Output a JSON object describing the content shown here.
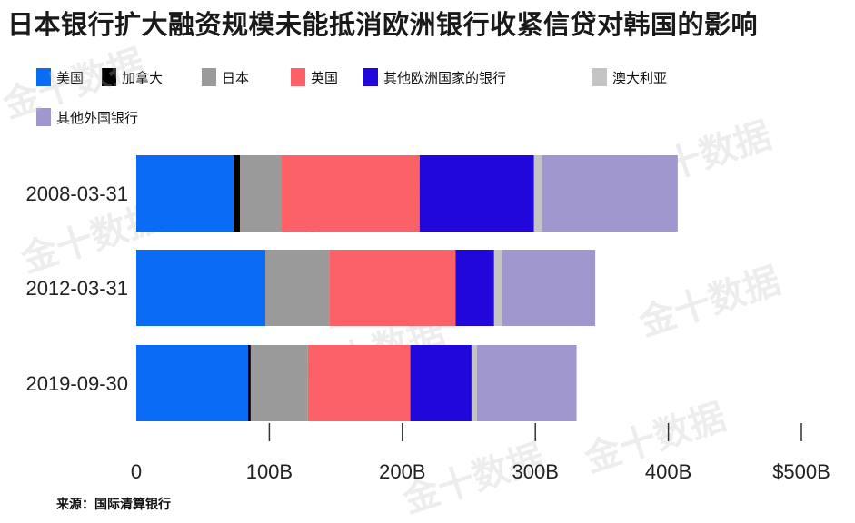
{
  "title": "日本银行扩大融资规模未能抵消欧洲银行收紧信贷对韩国的影响",
  "source": "来源：国际清算银行",
  "watermark": "金十数据",
  "legend": [
    {
      "name": "美国",
      "color": "#0a6cf5"
    },
    {
      "name": "加拿大",
      "color": "#000000"
    },
    {
      "name": "日本",
      "color": "#9a9a9a"
    },
    {
      "name": "英国",
      "color": "#fb6166"
    },
    {
      "name": "其他欧洲国家的银行",
      "color": "#2008dd"
    },
    {
      "name": "澳大利亚",
      "color": "#c4c4c4"
    },
    {
      "name": "其他外国银行",
      "color": "#a197cf"
    }
  ],
  "chart_data": {
    "type": "bar",
    "orientation": "horizontal",
    "stacked": true,
    "title": "日本银行扩大融资规模未能抵消欧洲银行收紧信贷对韩国的影响",
    "categories": [
      "2008-03-31",
      "2012-03-31",
      "2019-09-30"
    ],
    "series": [
      {
        "name": "美国",
        "color": "#0a6cf5",
        "values": [
          73,
          97,
          84
        ]
      },
      {
        "name": "加拿大",
        "color": "#000000",
        "values": [
          5,
          0,
          2
        ]
      },
      {
        "name": "日本",
        "color": "#9a9a9a",
        "values": [
          31,
          48,
          43
        ]
      },
      {
        "name": "英国",
        "color": "#fb6166",
        "values": [
          104,
          95,
          77
        ]
      },
      {
        "name": "其他欧洲国家的银行",
        "color": "#2008dd",
        "values": [
          86,
          29,
          46
        ]
      },
      {
        "name": "澳大利亚",
        "color": "#c4c4c4",
        "values": [
          6,
          6,
          4
        ]
      },
      {
        "name": "其他外国银行",
        "color": "#a197cf",
        "values": [
          102,
          70,
          75
        ]
      }
    ],
    "xlim": [
      0,
      500
    ],
    "xticks": [
      0,
      100,
      200,
      300,
      400,
      500
    ],
    "xtick_labels": [
      "0",
      "100B",
      "200B",
      "300B",
      "400B",
      "$500B"
    ],
    "xlabel": "",
    "ylabel": "",
    "grid": false,
    "legend_position": "top"
  }
}
